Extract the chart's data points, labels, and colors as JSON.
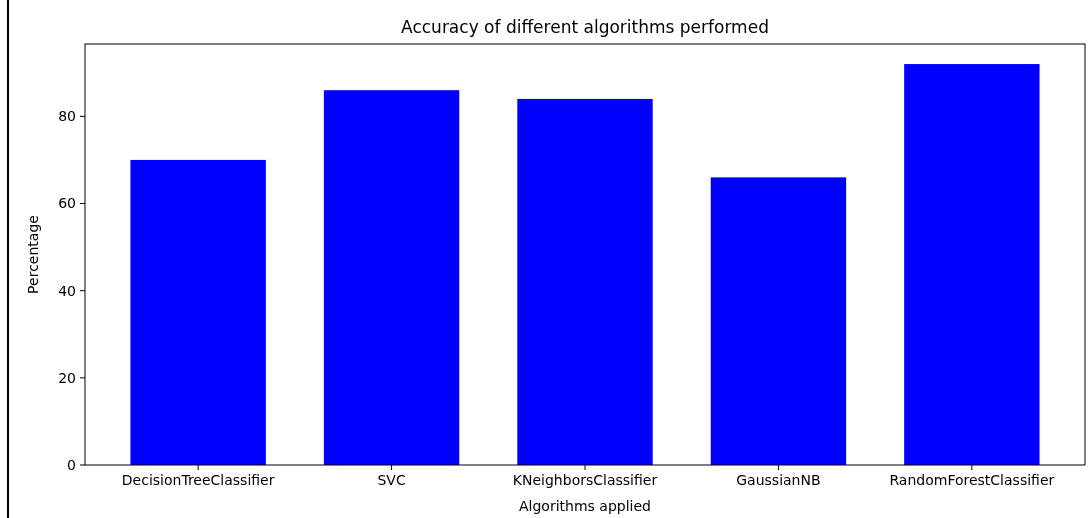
{
  "chart_data": {
    "type": "bar",
    "title": "Accuracy of different algorithms performed",
    "xlabel": "Algorithms applied",
    "ylabel": "Percentage",
    "categories": [
      "DecisionTreeClassifier",
      "SVC",
      "KNeighborsClassifier",
      "GaussianNB",
      "RandomForestClassifier"
    ],
    "values": [
      70,
      86,
      84,
      66,
      92
    ],
    "color": "#0000ff",
    "ylim": [
      0,
      96.6
    ],
    "yticks": [
      0,
      20,
      40,
      60,
      80
    ],
    "grid": false
  }
}
